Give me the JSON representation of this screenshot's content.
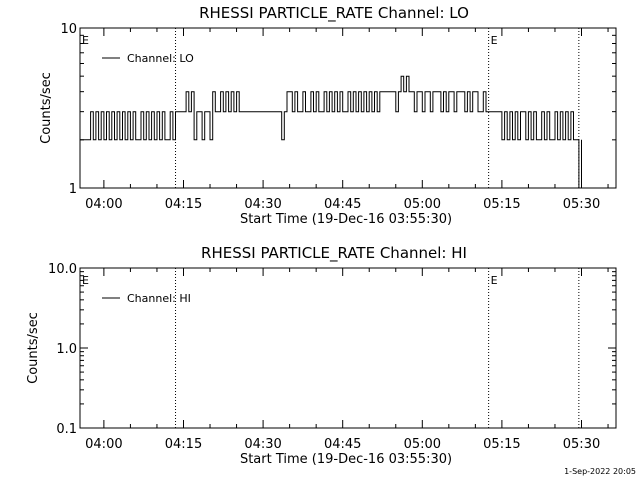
{
  "footer_date": "1-Sep-2022 20:05",
  "chart_data": [
    {
      "type": "line",
      "title": "RHESSI PARTICLE_RATE Channel: LO",
      "xlabel": "Start Time (19-Dec-16 03:55:30)",
      "ylabel": "Counts/sec",
      "yscale": "log",
      "ylim": [
        1,
        10
      ],
      "ytick_labels": [
        "1",
        "10"
      ],
      "xlim": [
        "03:55:30",
        "05:36:30"
      ],
      "xtick_labels": [
        "04:00",
        "04:15",
        "04:30",
        "04:45",
        "05:00",
        "05:15",
        "05:30"
      ],
      "vlines": [
        "04:13:30",
        "05:12:30",
        "05:29:30"
      ],
      "e_markers": [
        "03:55:30",
        "05:12:30"
      ],
      "legend": "top-left",
      "series": [
        {
          "name": "Channel: LO",
          "x": [
            "03:55:30",
            "03:57:00",
            "03:57:30",
            "03:58:00",
            "03:58:30",
            "03:59:00",
            "03:59:30",
            "04:00:00",
            "04:00:30",
            "04:01:00",
            "04:01:30",
            "04:02:00",
            "04:02:30",
            "04:03:00",
            "04:03:30",
            "04:04:00",
            "04:04:30",
            "04:05:00",
            "04:05:30",
            "04:06:00",
            "04:06:30",
            "04:07:00",
            "04:07:30",
            "04:08:00",
            "04:08:30",
            "04:09:00",
            "04:09:30",
            "04:10:00",
            "04:10:30",
            "04:11:00",
            "04:11:30",
            "04:12:00",
            "04:12:30",
            "04:13:00",
            "04:13:30",
            "04:15:00",
            "04:15:30",
            "04:16:00",
            "04:16:30",
            "04:17:00",
            "04:17:30",
            "04:18:00",
            "04:18:30",
            "04:19:00",
            "04:19:30",
            "04:20:00",
            "04:20:30",
            "04:21:00",
            "04:21:30",
            "04:22:00",
            "04:22:30",
            "04:23:00",
            "04:23:30",
            "04:24:00",
            "04:24:30",
            "04:25:00",
            "04:25:30",
            "04:26:00",
            "04:26:30",
            "04:27:00",
            "04:33:30",
            "04:34:00",
            "04:34:30",
            "04:35:00",
            "04:35:30",
            "04:36:00",
            "04:36:30",
            "04:37:00",
            "04:37:30",
            "04:38:00",
            "04:38:30",
            "04:39:00",
            "04:39:30",
            "04:40:00",
            "04:40:30",
            "04:41:00",
            "04:41:30",
            "04:42:00",
            "04:42:30",
            "04:43:00",
            "04:43:30",
            "04:44:00",
            "04:44:30",
            "04:45:00",
            "04:45:30",
            "04:46:00",
            "04:46:30",
            "04:47:00",
            "04:47:30",
            "04:48:00",
            "04:48:30",
            "04:49:00",
            "04:49:30",
            "04:50:00",
            "04:50:30",
            "04:51:00",
            "04:51:30",
            "04:52:00",
            "04:52:30",
            "04:53:00",
            "04:53:30",
            "04:54:00",
            "04:54:30",
            "04:55:00",
            "04:55:30",
            "04:56:00",
            "04:56:30",
            "04:57:00",
            "04:57:30",
            "04:58:00",
            "04:58:30",
            "04:59:00",
            "04:59:30",
            "05:00:00",
            "05:00:30",
            "05:01:00",
            "05:01:30",
            "05:02:00",
            "05:02:30",
            "05:03:00",
            "05:03:30",
            "05:04:00",
            "05:04:30",
            "05:05:00",
            "05:05:30",
            "05:06:00",
            "05:06:30",
            "05:07:00",
            "05:07:30",
            "05:08:00",
            "05:08:30",
            "05:09:00",
            "05:09:30",
            "05:10:00",
            "05:10:30",
            "05:11:00",
            "05:11:30",
            "05:12:00",
            "05:12:30",
            "05:15:00",
            "05:15:30",
            "05:16:00",
            "05:16:30",
            "05:17:00",
            "05:17:30",
            "05:18:00",
            "05:18:30",
            "05:19:00",
            "05:19:30",
            "05:20:00",
            "05:20:30",
            "05:21:00",
            "05:21:30",
            "05:22:00",
            "05:22:30",
            "05:23:00",
            "05:23:30",
            "05:24:00",
            "05:24:30",
            "05:25:00",
            "05:25:30",
            "05:26:00",
            "05:26:30",
            "05:27:00",
            "05:27:30",
            "05:28:00",
            "05:28:30",
            "05:29:00",
            "05:29:30",
            "05:30:00"
          ],
          "values": [
            2,
            2,
            3,
            2,
            3,
            2,
            3,
            2,
            3,
            2,
            3,
            2,
            3,
            2,
            3,
            2,
            3,
            2,
            3,
            2,
            2,
            3,
            2,
            3,
            2,
            3,
            2,
            3,
            2,
            3,
            2,
            2,
            3,
            2,
            3,
            3,
            4,
            3,
            4,
            2,
            3,
            3,
            2,
            3,
            3,
            2,
            4,
            3,
            3,
            4,
            3,
            4,
            3,
            4,
            3,
            4,
            3,
            3,
            3,
            3,
            2,
            3,
            4,
            4,
            3,
            4,
            3,
            3,
            4,
            3,
            3,
            4,
            3,
            4,
            3,
            3,
            4,
            3,
            4,
            3,
            4,
            3,
            4,
            3,
            3,
            4,
            3,
            4,
            3,
            4,
            3,
            4,
            3,
            4,
            3,
            4,
            3,
            4,
            4,
            4,
            4,
            4,
            4,
            3,
            4,
            5,
            4,
            5,
            4,
            4,
            3,
            4,
            4,
            3,
            4,
            4,
            3,
            4,
            4,
            4,
            3,
            4,
            3,
            4,
            4,
            3,
            4,
            4,
            4,
            3,
            4,
            3,
            4,
            4,
            3,
            3,
            4,
            3,
            3,
            2,
            3,
            2,
            3,
            2,
            3,
            2,
            3,
            3,
            2,
            3,
            2,
            3,
            2,
            2,
            3,
            2,
            3,
            2,
            2,
            3,
            2,
            3,
            2,
            3,
            2,
            3,
            2,
            2,
            1,
            2
          ]
        }
      ]
    },
    {
      "type": "line",
      "title": "RHESSI PARTICLE_RATE Channel: HI",
      "xlabel": "Start Time (19-Dec-16 03:55:30)",
      "ylabel": "Counts/sec",
      "yscale": "log",
      "ylim": [
        0.1,
        10
      ],
      "ytick_labels": [
        "0.1",
        "1.0",
        "10.0"
      ],
      "xlim": [
        "03:55:30",
        "05:36:30"
      ],
      "xtick_labels": [
        "04:00",
        "04:15",
        "04:30",
        "04:45",
        "05:00",
        "05:15",
        "05:30"
      ],
      "vlines": [
        "04:13:30",
        "05:12:30",
        "05:29:30"
      ],
      "e_markers": [
        "03:55:30",
        "05:12:30"
      ],
      "legend": "top-left",
      "series": [
        {
          "name": "Channel: HI",
          "x": [],
          "values": []
        }
      ]
    }
  ]
}
